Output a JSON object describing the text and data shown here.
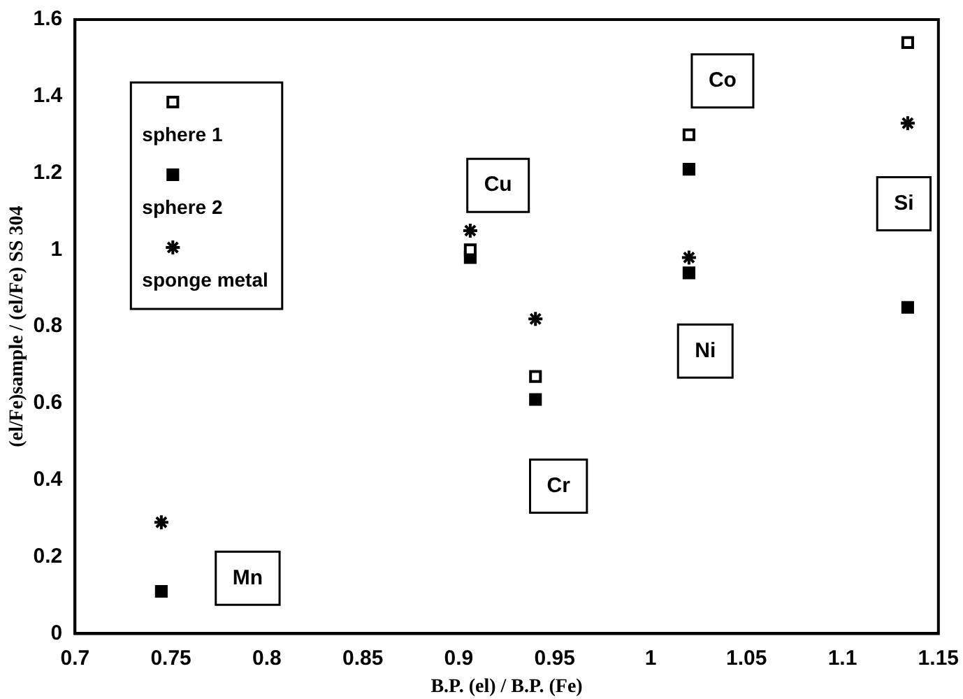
{
  "chart_data": {
    "type": "scatter",
    "xlabel": "B.P. (el) / B.P. (Fe)",
    "ylabel": "(el/Fe)sample / (el/Fe) SS 304",
    "xlim": [
      0.7,
      1.15
    ],
    "xticks": [
      0.7,
      0.75,
      0.8,
      0.85,
      0.9,
      0.95,
      1,
      1.05,
      1.1,
      1.15
    ],
    "ylim": [
      0,
      1.6
    ],
    "yticks": [
      0,
      0.2,
      0.4,
      0.6,
      0.8,
      1,
      1.2,
      1.4,
      1.6
    ],
    "grid": false,
    "legend": "top left",
    "series": [
      {
        "name": "sphere 1",
        "color": "#000000",
        "marker": "square",
        "x": [
          0.906,
          0.94,
          1.02,
          1.134
        ],
        "values": [
          1.0,
          0.67,
          1.3,
          1.54
        ]
      },
      {
        "name": "sphere 2",
        "color": "#000000",
        "marker": "square-filled",
        "x": [
          0.745,
          0.906,
          0.94,
          1.02,
          1.02,
          1.134
        ],
        "values": [
          0.11,
          0.98,
          0.61,
          1.21,
          0.94,
          0.85
        ]
      },
      {
        "name": "sponge metal",
        "color": "#000000",
        "marker": "cross",
        "x": [
          0.745,
          0.906,
          0.94,
          1.02,
          1.134
        ],
        "values": [
          0.29,
          1.05,
          0.82,
          0.98,
          1.33
        ]
      }
    ],
    "annotations": [
      "Mn",
      "Cu",
      "Cr",
      "Co",
      "Ni",
      "Si"
    ]
  }
}
